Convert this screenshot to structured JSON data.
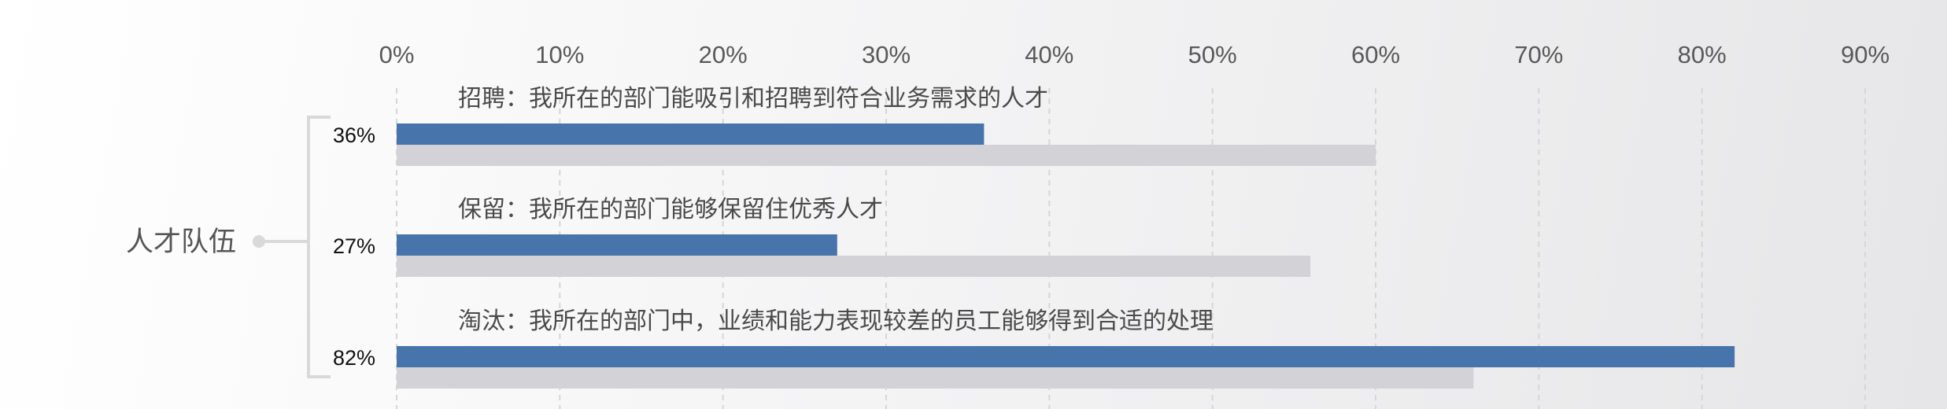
{
  "chart_data": {
    "type": "bar",
    "orientation": "horizontal",
    "group_label": "人才队伍",
    "x_ticks": [
      "0%",
      "10%",
      "20%",
      "30%",
      "40%",
      "50%",
      "60%",
      "70%",
      "80%",
      "90%"
    ],
    "xlim": [
      0,
      90
    ],
    "grid": true,
    "categories": [
      "招聘：我所在的部门能吸引和招聘到符合业务需求的人才",
      "保留：我所在的部门能够保留住优秀人才",
      "淘汰：我所在的部门中，业绩和能力表现较差的员工能够得到合适的处理"
    ],
    "series": [
      {
        "values": [
          36,
          27,
          82
        ],
        "labels": [
          "36%",
          "27%",
          "82%"
        ],
        "color": "#4674ab"
      },
      {
        "values": [
          60,
          56,
          66
        ],
        "color": "#d3d2d6"
      }
    ],
    "legend": "none"
  }
}
